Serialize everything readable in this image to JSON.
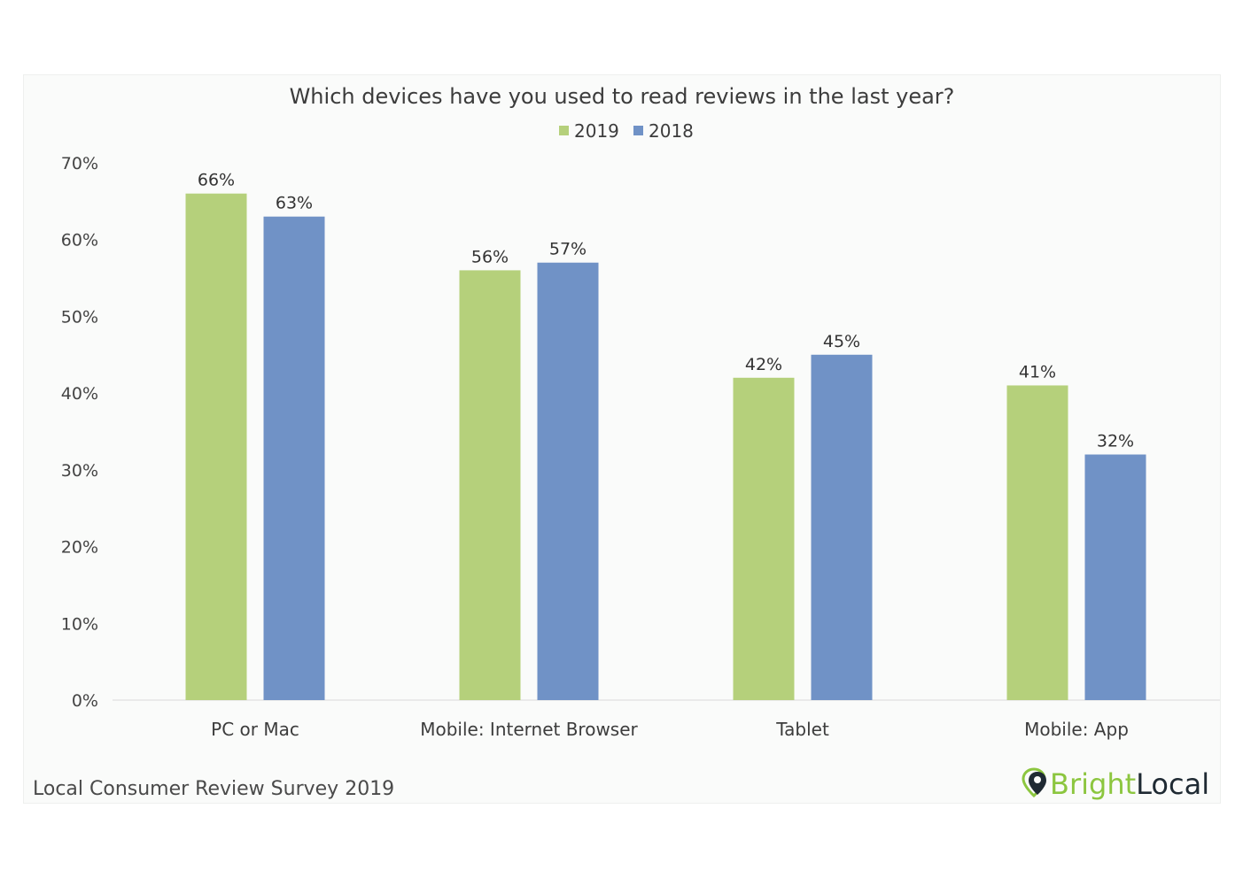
{
  "colors": {
    "series_2019": "#b5d07b",
    "series_2018": "#7092c6",
    "brand_green": "#8cc63f",
    "brand_dark": "#1f2a33",
    "axis_line": "#d9d9d9"
  },
  "chart_data": {
    "type": "bar",
    "title": "Which devices have you used to read reviews in the last year?",
    "categories": [
      "PC or Mac",
      "Mobile: Internet Browser",
      "Tablet",
      "Mobile: App"
    ],
    "series": [
      {
        "name": "2019",
        "values": [
          66,
          56,
          42,
          41
        ],
        "labels": [
          "66%",
          "56%",
          "42%",
          "41%"
        ]
      },
      {
        "name": "2018",
        "values": [
          63,
          57,
          45,
          32
        ],
        "labels": [
          "63%",
          "57%",
          "45%",
          "32%"
        ]
      }
    ],
    "ylim": [
      0,
      70
    ],
    "yticks": [
      "0%",
      "10%",
      "20%",
      "30%",
      "40%",
      "50%",
      "60%",
      "70%"
    ],
    "xlabel": "",
    "ylabel": "",
    "grid": false,
    "legend_position": "top-center"
  },
  "footer": {
    "source": "Local Consumer Review Survey 2019",
    "brand_part1": "Bright",
    "brand_part2": "Local",
    "brand_icon": "map-pin-icon"
  }
}
